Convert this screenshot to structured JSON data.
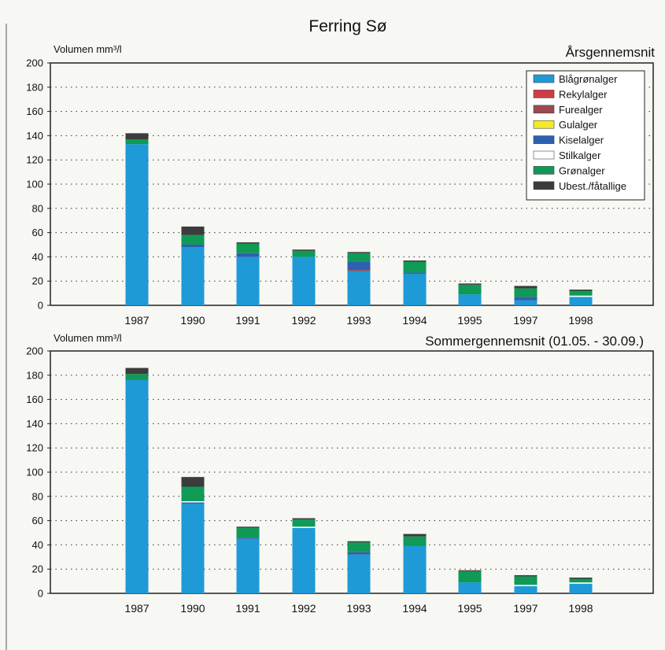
{
  "title": "Ferring Sø",
  "colors": {
    "Blågrønalger": "#1e9ad6",
    "Rekylalger": "#d23c43",
    "Furealger": "#9b4a4f",
    "Gulalger": "#f2ea2a",
    "Kiselalger": "#2f5fb0",
    "Stilkalger": "#ffffff",
    "Grønalger": "#0f9a55",
    "Ubest./fåtallige": "#3c3c3c"
  },
  "chart_data": [
    {
      "type": "bar",
      "stacked": true,
      "title": "Årsgennemsnit",
      "ylabel": "Volumen mm³/l",
      "ylim": [
        0,
        200
      ],
      "yticks": [
        0,
        20,
        40,
        60,
        80,
        100,
        120,
        140,
        160,
        180,
        200
      ],
      "grid": true,
      "legend": "top-right",
      "categories": [
        "1987",
        "1990",
        "1991",
        "1992",
        "1993",
        "1994",
        "1995",
        "1997",
        "1998"
      ],
      "series": [
        {
          "name": "Blågrønalger",
          "values": [
            133,
            48,
            40,
            40,
            28,
            26,
            9,
            4,
            7
          ]
        },
        {
          "name": "Rekylalger",
          "values": [
            0,
            0,
            0,
            0,
            0,
            0,
            0,
            0,
            0
          ]
        },
        {
          "name": "Furealger",
          "values": [
            0,
            0,
            0,
            0,
            1,
            0,
            0,
            0,
            0
          ]
        },
        {
          "name": "Gulalger",
          "values": [
            0,
            0,
            0,
            0,
            0,
            0,
            0,
            0,
            0
          ]
        },
        {
          "name": "Kiselalger",
          "values": [
            0,
            2,
            3,
            0,
            7,
            1,
            0,
            3,
            0
          ]
        },
        {
          "name": "Stilkalger",
          "values": [
            0,
            0,
            0,
            0,
            0,
            0,
            0,
            0,
            1
          ]
        },
        {
          "name": "Grønalger",
          "values": [
            4,
            8,
            8,
            5,
            7,
            9,
            8,
            7,
            4
          ]
        },
        {
          "name": "Ubest./fåtallige",
          "values": [
            5,
            7,
            1,
            1,
            1,
            1,
            1,
            2,
            1
          ]
        }
      ]
    },
    {
      "type": "bar",
      "stacked": true,
      "title": "Sommergennemsnit (01.05. - 30.09.)",
      "ylabel": "Volumen mm³/l",
      "ylim": [
        0,
        200
      ],
      "yticks": [
        0,
        20,
        40,
        60,
        80,
        100,
        120,
        140,
        160,
        180,
        200
      ],
      "grid": true,
      "categories": [
        "1987",
        "1990",
        "1991",
        "1992",
        "1993",
        "1994",
        "1995",
        "1997",
        "1998"
      ],
      "series": [
        {
          "name": "Blågrønalger",
          "values": [
            176,
            74,
            45,
            54,
            32,
            39,
            9,
            6,
            8
          ]
        },
        {
          "name": "Rekylalger",
          "values": [
            0,
            0,
            0,
            0,
            0,
            0,
            0,
            0,
            0
          ]
        },
        {
          "name": "Furealger",
          "values": [
            0,
            0,
            0,
            0,
            0,
            0,
            0,
            0,
            0
          ]
        },
        {
          "name": "Gulalger",
          "values": [
            0,
            0,
            0,
            0,
            0,
            0,
            0,
            0,
            0
          ]
        },
        {
          "name": "Kiselalger",
          "values": [
            0,
            1,
            1,
            0,
            2,
            0,
            0,
            0,
            0
          ]
        },
        {
          "name": "Stilkalger",
          "values": [
            0,
            1,
            0,
            1,
            0,
            0,
            0,
            1,
            1
          ]
        },
        {
          "name": "Grønalger",
          "values": [
            5,
            12,
            8,
            6,
            8,
            8,
            9,
            7,
            3
          ]
        },
        {
          "name": "Ubest./fåtallige",
          "values": [
            5,
            8,
            1,
            1,
            1,
            2,
            1,
            1,
            1
          ]
        }
      ]
    }
  ]
}
